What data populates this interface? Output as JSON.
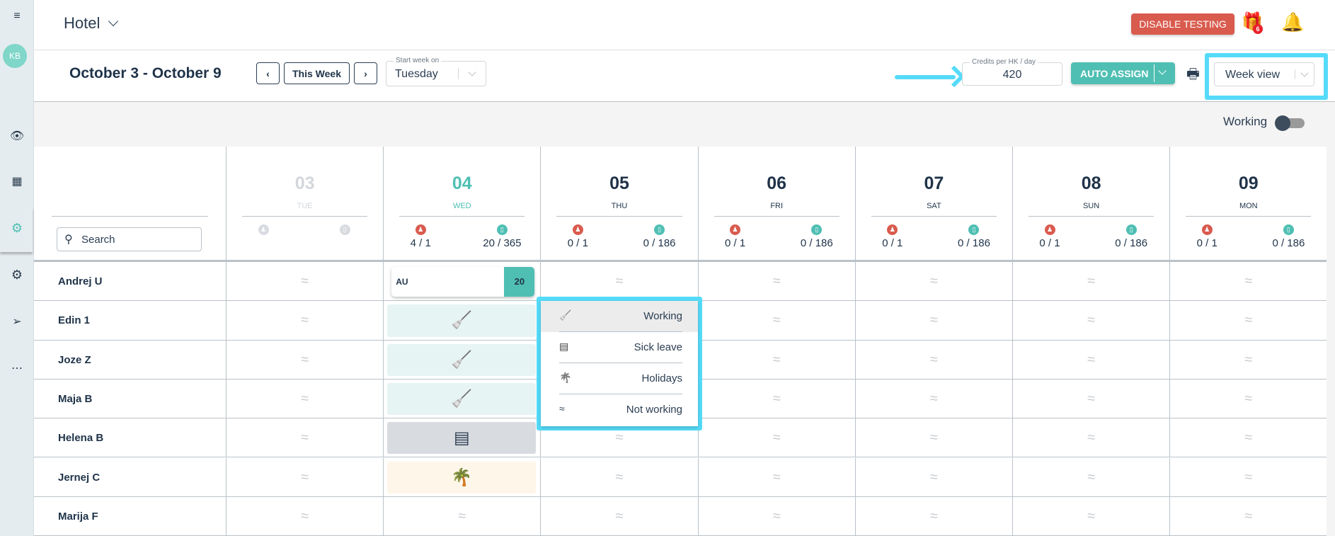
{
  "sidebar": {
    "avatar": "KB",
    "icons": [
      "menu-icon",
      "eye-icon",
      "building-icon",
      "settings-icon-active",
      "settings-icon",
      "send-icon",
      "more-icon"
    ]
  },
  "header": {
    "property": "Hotel",
    "disable_testing": "DISABLE TESTING",
    "gift_badge": "6"
  },
  "toolbar": {
    "date_range": "October 3 - October 9",
    "prev": "‹",
    "this_week": "This Week",
    "next": "›",
    "start_week_label": "Start week on",
    "start_week_value": "Tuesday",
    "credits_label": "Credits per HK / day",
    "credits_value": "420",
    "auto_assign": "AUTO ASSIGN",
    "view_value": "Week view"
  },
  "filter": {
    "working_label": "Working",
    "working_on": true
  },
  "search": {
    "placeholder": "Search"
  },
  "days": [
    {
      "num": "03",
      "name": "TUE",
      "state": "past",
      "a": "",
      "b": ""
    },
    {
      "num": "04",
      "name": "WED",
      "state": "today",
      "a": "4 / 1",
      "b": "20 / 365"
    },
    {
      "num": "05",
      "name": "THU",
      "state": "",
      "a": "0 / 1",
      "b": "0 / 186"
    },
    {
      "num": "06",
      "name": "FRI",
      "state": "",
      "a": "0 / 1",
      "b": "0 / 186"
    },
    {
      "num": "07",
      "name": "SAT",
      "state": "",
      "a": "0 / 1",
      "b": "0 / 186"
    },
    {
      "num": "08",
      "name": "SUN",
      "state": "",
      "a": "0 / 1",
      "b": "0 / 186"
    },
    {
      "num": "09",
      "name": "MON",
      "state": "",
      "a": "0 / 1",
      "b": "0 / 186"
    }
  ],
  "rows": [
    {
      "name": "Andrej U",
      "cells": [
        "none",
        {
          "type": "au",
          "label": "AU",
          "credits": "20"
        },
        "none",
        "none",
        "none",
        "none",
        "none"
      ]
    },
    {
      "name": "Edin 1",
      "cells": [
        "none",
        "working",
        "none",
        "none",
        "none",
        "none",
        "none"
      ]
    },
    {
      "name": "Joze Z",
      "cells": [
        "none",
        "working",
        "none",
        "none",
        "none",
        "none",
        "none"
      ]
    },
    {
      "name": "Maja B",
      "cells": [
        "none",
        "working",
        "none",
        "none",
        "none",
        "none",
        "none"
      ]
    },
    {
      "name": "Helena B",
      "cells": [
        "none",
        "sick",
        "none",
        "none",
        "none",
        "none",
        "none"
      ]
    },
    {
      "name": "Jernej C",
      "cells": [
        "none",
        "holiday",
        "none",
        "none",
        "none",
        "none",
        "none"
      ]
    },
    {
      "name": "Marija F",
      "cells": [
        "none",
        "none",
        "none",
        "none",
        "none",
        "none",
        "none"
      ]
    }
  ],
  "status_menu": [
    {
      "icon": "broom-icon",
      "glyph": "🧹",
      "label": "Working"
    },
    {
      "icon": "sick-note-icon",
      "glyph": "▤",
      "label": "Sick leave"
    },
    {
      "icon": "palm-tree-icon",
      "glyph": "🌴",
      "label": "Holidays"
    },
    {
      "icon": "not-working-icon",
      "glyph": "≈",
      "label": "Not working"
    }
  ],
  "colors": {
    "accent": "#4fbfb3",
    "danger": "#d95b4e",
    "highlight": "#55dbf9",
    "working_bg": "#e6f4f3",
    "sick_bg": "#d8dbe0",
    "holiday_bg": "#fff6ea",
    "holiday_fg": "#f2b705"
  }
}
